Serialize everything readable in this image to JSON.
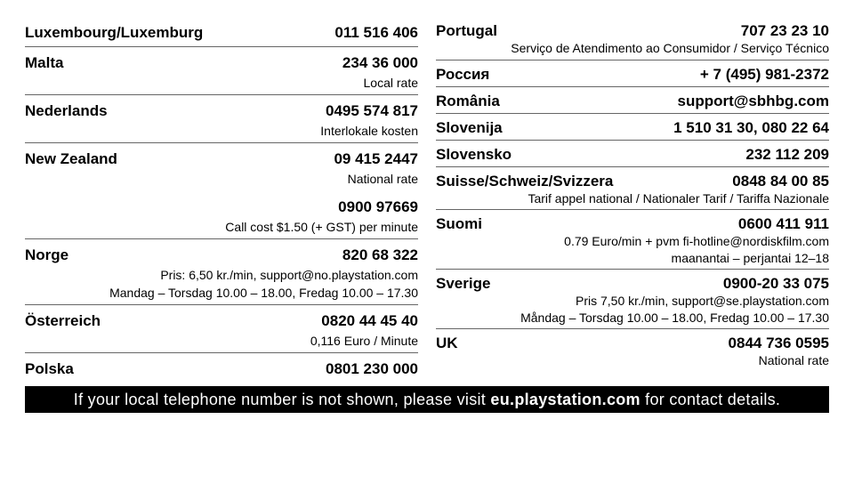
{
  "columns": [
    {
      "entries": [
        {
          "country": "Luxembourg/Luxemburg",
          "blocks": [
            {
              "number": "011 516 406",
              "notes": []
            }
          ]
        },
        {
          "country": "Malta",
          "blocks": [
            {
              "number": "234 36 000",
              "notes": [
                "Local rate"
              ]
            }
          ]
        },
        {
          "country": "Nederlands",
          "blocks": [
            {
              "number": "0495 574 817",
              "notes": [
                "Interlokale kosten"
              ]
            }
          ]
        },
        {
          "country": "New Zealand",
          "blocks": [
            {
              "number": "09 415 2447",
              "notes": [
                "National rate"
              ]
            },
            {
              "number": "0900 97669",
              "notes": [
                "Call cost $1.50 (+ GST) per minute"
              ]
            }
          ]
        },
        {
          "country": "Norge",
          "blocks": [
            {
              "number": "820 68 322",
              "notes": [
                "Pris: 6,50 kr./min, support@no.playstation.com",
                "Mandag – Torsdag 10.00 – 18.00, Fredag 10.00 – 17.30"
              ]
            }
          ]
        },
        {
          "country": "Österreich",
          "blocks": [
            {
              "number": "0820 44 45 40",
              "notes": [
                "0,116 Euro / Minute"
              ]
            }
          ]
        },
        {
          "country": "Polska",
          "blocks": [
            {
              "number": "0801 230 000",
              "notes": []
            }
          ]
        }
      ]
    },
    {
      "entries": [
        {
          "country": "Portugal",
          "blocks": [
            {
              "number": "707 23 23 10",
              "notes": [
                "Serviço de Atendimento ao Consumidor / Serviço Técnico"
              ]
            }
          ]
        },
        {
          "country": "Россия",
          "blocks": [
            {
              "number": "+ 7 (495) 981-2372",
              "notes": []
            }
          ]
        },
        {
          "country": "România",
          "blocks": [
            {
              "number": "support@sbhbg.com",
              "notes": []
            }
          ]
        },
        {
          "country": "Slovenija",
          "blocks": [
            {
              "number": "1 510 31 30, 080 22 64",
              "notes": []
            }
          ]
        },
        {
          "country": "Slovensko",
          "blocks": [
            {
              "number": "232 112 209",
              "notes": []
            }
          ]
        },
        {
          "country": "Suisse/Schweiz/Svizzera",
          "blocks": [
            {
              "number": "0848 84 00 85",
              "notes": [
                "Tarif appel national / Nationaler Tarif / Tariffa Nazionale"
              ]
            }
          ]
        },
        {
          "country": "Suomi",
          "blocks": [
            {
              "number": "0600 411 911",
              "notes": [
                "0.79 Euro/min + pvm fi-hotline@nordiskfilm.com",
                "maanantai – perjantai 12–18"
              ]
            }
          ]
        },
        {
          "country": "Sverige",
          "blocks": [
            {
              "number": "0900-20 33 075",
              "notes": [
                "Pris 7,50 kr./min, support@se.playstation.com",
                "Måndag – Torsdag 10.00 – 18.00, Fredag 10.00 – 17.30"
              ]
            }
          ]
        },
        {
          "country": "UK",
          "blocks": [
            {
              "number": "0844 736 0595",
              "notes": [
                "National rate"
              ]
            }
          ]
        }
      ]
    }
  ],
  "banner": {
    "before": "If your local telephone number is not shown, please visit ",
    "link": "eu.playstation.com",
    "after": " for contact details."
  }
}
